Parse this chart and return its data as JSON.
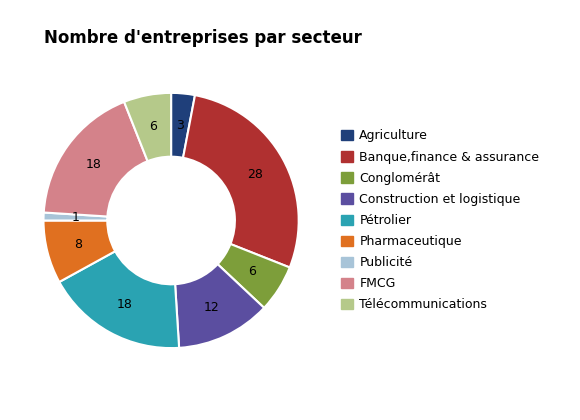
{
  "title": "Nombre d'entreprises par secteur",
  "labels": [
    "Agriculture",
    "Banque,finance & assurance",
    "Conglomérât",
    "Construction et logistique",
    "Pétrolier",
    "Pharmaceutique",
    "Publicité",
    "FMCG",
    "Télécommunications"
  ],
  "values": [
    3,
    28,
    6,
    12,
    18,
    8,
    1,
    18,
    6
  ],
  "colors": [
    "#1F3F7A",
    "#B03030",
    "#7D9E3A",
    "#5B4EA0",
    "#2AA3B2",
    "#E07020",
    "#A8C4D8",
    "#D4828A",
    "#B5C98A"
  ],
  "background_color": "#ffffff",
  "title_fontsize": 12,
  "label_fontsize": 9,
  "legend_fontsize": 9,
  "donut_width": 0.5
}
